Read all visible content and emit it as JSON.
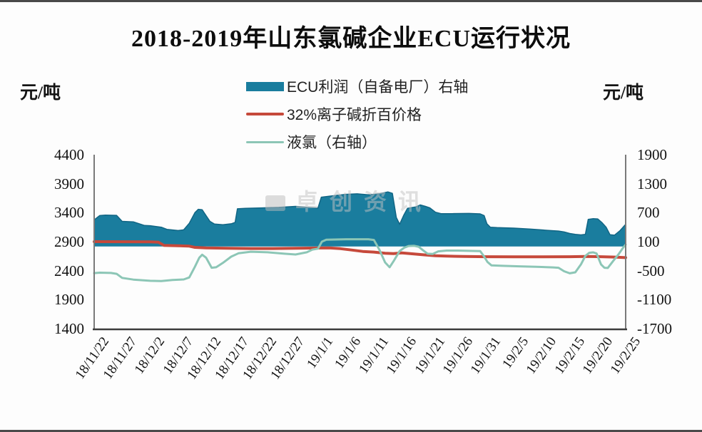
{
  "title": "2018-2019年山东氯碱企业ECU运行状况",
  "left_axis_unit": "元/吨",
  "right_axis_unit": "元/吨",
  "watermark_text": "卓创资讯",
  "colors": {
    "ecu_area": "#1a7d9e",
    "ecu_area_edge": "#116584",
    "caustic_line": "#c6493b",
    "chlorine_line": "#8cc6b6",
    "axis_gray": "#7a7a7a",
    "axis_dark": "#3c3c3c"
  },
  "legend": [
    {
      "label": "ECU利润（自备电厂）右轴",
      "swatch": "area",
      "color": "#1a7d9e"
    },
    {
      "label": "32%离子碱折百价格",
      "swatch": "line-thick",
      "color": "#c6493b"
    },
    {
      "label": "液氯（右轴）",
      "swatch": "line-thin",
      "color": "#8cc6b6"
    }
  ],
  "chart_data": {
    "type": "area",
    "title": "2018-2019年山东氯碱企业ECU运行状况",
    "x_tick_labels": [
      "18/11/22",
      "18/11/27",
      "18/12/2",
      "18/12/7",
      "18/12/12",
      "18/12/17",
      "18/12/22",
      "18/12/27",
      "19/1/1",
      "19/1/6",
      "19/1/11",
      "19/1/16",
      "19/1/21",
      "19/1/26",
      "19/1/31",
      "19/2/5",
      "19/2/10",
      "19/2/15",
      "19/2/20",
      "19/2/25"
    ],
    "x_tick_days": [
      0,
      5,
      10,
      15,
      20,
      25,
      30,
      35,
      40,
      45,
      50,
      55,
      60,
      65,
      70,
      75,
      80,
      85,
      90,
      95
    ],
    "left_axis": {
      "unit": "元/吨",
      "min": 1400,
      "max": 4400,
      "step": 500,
      "ticks": [
        4400,
        3900,
        3400,
        2900,
        2400,
        1900,
        1400
      ]
    },
    "right_axis": {
      "unit": "元/吨",
      "min": -1700,
      "max": 1900,
      "step": 600,
      "ticks": [
        1900,
        1300,
        700,
        100,
        -500,
        -1100,
        -1700
      ]
    },
    "grid": false,
    "legend_position": "top-center",
    "series": [
      {
        "name": "ECU利润（自备电厂）右轴",
        "axis": "right",
        "type": "area",
        "baseline": 0,
        "color": "#1a7d9e",
        "edge_color": "#116584",
        "points": [
          [
            0,
            550
          ],
          [
            1,
            640
          ],
          [
            2,
            650
          ],
          [
            4,
            645
          ],
          [
            5,
            520
          ],
          [
            7,
            510
          ],
          [
            9,
            435
          ],
          [
            10,
            430
          ],
          [
            12,
            400
          ],
          [
            13,
            355
          ],
          [
            15,
            330
          ],
          [
            16,
            345
          ],
          [
            17,
            480
          ],
          [
            18,
            700
          ],
          [
            18.6,
            770
          ],
          [
            19.3,
            760
          ],
          [
            20,
            640
          ],
          [
            20.7,
            520
          ],
          [
            21.5,
            465
          ],
          [
            23,
            450
          ],
          [
            24.5,
            470
          ],
          [
            25.2,
            500
          ],
          [
            25.6,
            780
          ],
          [
            27,
            790
          ],
          [
            30,
            800
          ],
          [
            33,
            810
          ],
          [
            36,
            830
          ],
          [
            38,
            810
          ],
          [
            40,
            795
          ],
          [
            40.6,
            1020
          ],
          [
            42,
            1040
          ],
          [
            45,
            1080
          ],
          [
            47,
            1090
          ],
          [
            49,
            1070
          ],
          [
            51,
            1090
          ],
          [
            52.5,
            1130
          ],
          [
            53.3,
            1100
          ],
          [
            54,
            600
          ],
          [
            54.6,
            460
          ],
          [
            55.3,
            640
          ],
          [
            56,
            790
          ],
          [
            57.5,
            820
          ],
          [
            58.3,
            860
          ],
          [
            59.2,
            830
          ],
          [
            60,
            800
          ],
          [
            61,
            710
          ],
          [
            62,
            680
          ],
          [
            64,
            680
          ],
          [
            67,
            685
          ],
          [
            69,
            675
          ],
          [
            69.7,
            640
          ],
          [
            70.2,
            470
          ],
          [
            70.8,
            400
          ],
          [
            72,
            390
          ],
          [
            75,
            380
          ],
          [
            78,
            360
          ],
          [
            81,
            335
          ],
          [
            83,
            320
          ],
          [
            84,
            300
          ],
          [
            85,
            270
          ],
          [
            86,
            250
          ],
          [
            87,
            240
          ],
          [
            87.8,
            250
          ],
          [
            88.3,
            560
          ],
          [
            89.2,
            575
          ],
          [
            90,
            570
          ],
          [
            90.8,
            490
          ],
          [
            91.5,
            400
          ],
          [
            92.2,
            245
          ],
          [
            93,
            235
          ],
          [
            94,
            330
          ],
          [
            95,
            460
          ]
        ]
      },
      {
        "name": "32%离子碱折百价格",
        "axis": "left",
        "type": "line",
        "color": "#c6493b",
        "stroke_width": 4,
        "points": [
          [
            0,
            2900
          ],
          [
            10,
            2898
          ],
          [
            11.5,
            2890
          ],
          [
            12.5,
            2835
          ],
          [
            15,
            2830
          ],
          [
            17,
            2822
          ],
          [
            18,
            2802
          ],
          [
            20,
            2792
          ],
          [
            24,
            2786
          ],
          [
            28,
            2782
          ],
          [
            32,
            2782
          ],
          [
            36,
            2786
          ],
          [
            40,
            2790
          ],
          [
            42,
            2792
          ],
          [
            44,
            2780
          ],
          [
            46,
            2756
          ],
          [
            48,
            2732
          ],
          [
            50,
            2720
          ],
          [
            52,
            2700
          ],
          [
            53.5,
            2694
          ],
          [
            55,
            2706
          ],
          [
            57,
            2690
          ],
          [
            59,
            2672
          ],
          [
            61,
            2656
          ],
          [
            63,
            2650
          ],
          [
            66,
            2645
          ],
          [
            70,
            2640
          ],
          [
            75,
            2638
          ],
          [
            80,
            2638
          ],
          [
            85,
            2640
          ],
          [
            88,
            2646
          ],
          [
            90,
            2642
          ],
          [
            93,
            2634
          ],
          [
            95,
            2624
          ]
        ]
      },
      {
        "name": "液氯（右轴）",
        "axis": "right",
        "type": "line",
        "color": "#8cc6b6",
        "stroke_width": 3,
        "points": [
          [
            0,
            -550
          ],
          [
            1,
            -542
          ],
          [
            3,
            -548
          ],
          [
            4,
            -565
          ],
          [
            5,
            -650
          ],
          [
            7,
            -685
          ],
          [
            10,
            -710
          ],
          [
            12,
            -715
          ],
          [
            14,
            -692
          ],
          [
            16,
            -682
          ],
          [
            17,
            -640
          ],
          [
            18,
            -420
          ],
          [
            18.8,
            -230
          ],
          [
            19.3,
            -170
          ],
          [
            20,
            -230
          ],
          [
            21,
            -440
          ],
          [
            21.8,
            -430
          ],
          [
            23,
            -340
          ],
          [
            24.5,
            -210
          ],
          [
            25.8,
            -140
          ],
          [
            28,
            -108
          ],
          [
            31,
            -120
          ],
          [
            34,
            -150
          ],
          [
            36,
            -165
          ],
          [
            38,
            -120
          ],
          [
            39,
            -65
          ],
          [
            40,
            -45
          ],
          [
            40.7,
            100
          ],
          [
            41.5,
            140
          ],
          [
            45,
            150
          ],
          [
            49,
            150
          ],
          [
            50,
            135
          ],
          [
            51,
            -70
          ],
          [
            52,
            -330
          ],
          [
            52.8,
            -430
          ],
          [
            53.6,
            -290
          ],
          [
            54.6,
            -95
          ],
          [
            55.4,
            -25
          ],
          [
            56.2,
            10
          ],
          [
            57.2,
            15
          ],
          [
            58,
            -5
          ],
          [
            58.8,
            -80
          ],
          [
            59.6,
            -150
          ],
          [
            60.5,
            -155
          ],
          [
            61.5,
            -100
          ],
          [
            63,
            -85
          ],
          [
            65,
            -85
          ],
          [
            67,
            -90
          ],
          [
            69,
            -95
          ],
          [
            69.6,
            -190
          ],
          [
            70.3,
            -320
          ],
          [
            71,
            -390
          ],
          [
            73,
            -400
          ],
          [
            76,
            -410
          ],
          [
            79,
            -420
          ],
          [
            82,
            -432
          ],
          [
            83,
            -440
          ],
          [
            84,
            -512
          ],
          [
            85,
            -555
          ],
          [
            86,
            -535
          ],
          [
            87,
            -370
          ],
          [
            87.8,
            -195
          ],
          [
            88.5,
            -130
          ],
          [
            89.2,
            -122
          ],
          [
            89.8,
            -145
          ],
          [
            90.6,
            -370
          ],
          [
            91.2,
            -440
          ],
          [
            91.8,
            -445
          ],
          [
            92.8,
            -295
          ],
          [
            93.7,
            -165
          ],
          [
            94.6,
            -15
          ],
          [
            95,
            40
          ]
        ]
      }
    ]
  }
}
